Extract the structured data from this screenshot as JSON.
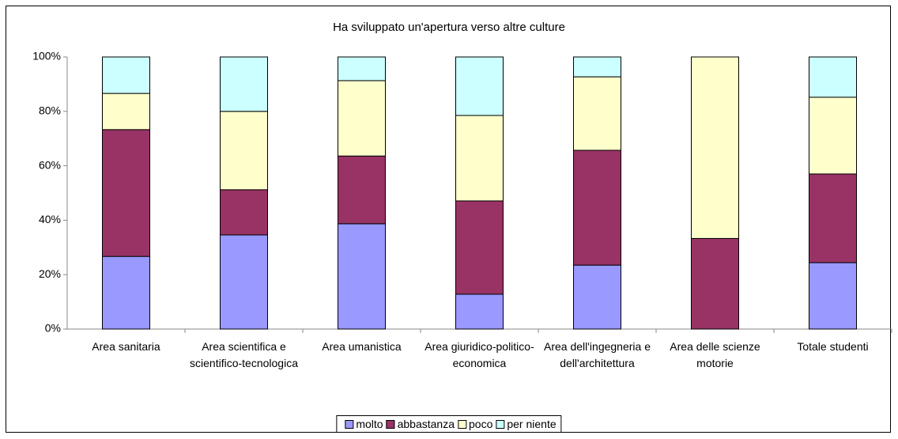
{
  "chart_data": {
    "type": "stacked_bar_percent",
    "title": "Ha sviluppato un'apertura verso altre culture",
    "categories": [
      "Area sanitaria",
      "Area scientifica e scientifico-tecnologica",
      "Area umanistica",
      "Area giuridico-politico-economica",
      "Area dell'ingegneria e dell'architettura",
      "Area delle scienze motorie",
      "Totale studenti"
    ],
    "series": [
      {
        "name": "molto",
        "color": "#9999ff",
        "values": [
          26.7,
          34.6,
          38.7,
          12.8,
          23.5,
          0,
          24.4
        ]
      },
      {
        "name": "abbastanza",
        "color": "#993366",
        "values": [
          46.6,
          16.6,
          24.9,
          34.3,
          42.2,
          33.3,
          32.6
        ]
      },
      {
        "name": "poco",
        "color": "#ffffcc",
        "values": [
          13.3,
          28.8,
          27.7,
          31.4,
          27.0,
          66.7,
          28.2
        ]
      },
      {
        "name": "per niente",
        "color": "#ccffff",
        "values": [
          13.4,
          20.0,
          8.7,
          21.5,
          7.3,
          0,
          14.8
        ]
      }
    ],
    "ylim": [
      0,
      100
    ],
    "yticks": [
      {
        "value": 0,
        "label": "0%"
      },
      {
        "value": 20,
        "label": "20%"
      },
      {
        "value": 40,
        "label": "40%"
      },
      {
        "value": 60,
        "label": "60%"
      },
      {
        "value": 80,
        "label": "80%"
      },
      {
        "value": 100,
        "label": "100%"
      }
    ],
    "legend": "bottom"
  }
}
